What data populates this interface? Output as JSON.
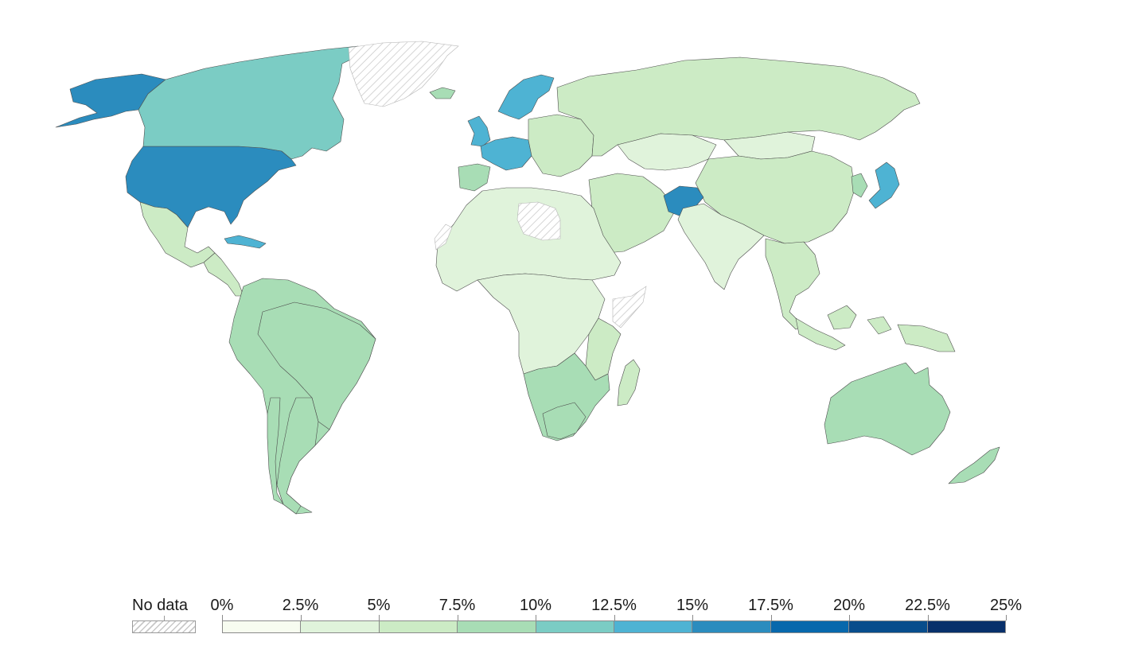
{
  "legend": {
    "no_data_label": "No data",
    "ticks": [
      "0%",
      "2.5%",
      "5%",
      "7.5%",
      "10%",
      "12.5%",
      "15%",
      "17.5%",
      "20%",
      "22.5%",
      "25%"
    ],
    "bins": [
      {
        "range": "0%–2.5%",
        "color": "#f7fcf0"
      },
      {
        "range": "2.5%–5%",
        "color": "#e0f3db"
      },
      {
        "range": "5%–7.5%",
        "color": "#ccebc5"
      },
      {
        "range": "7.5%–10%",
        "color": "#a8ddb5"
      },
      {
        "range": "10%–12.5%",
        "color": "#7bccc4"
      },
      {
        "range": "12.5%–15%",
        "color": "#4eb3d3"
      },
      {
        "range": "15%–17.5%",
        "color": "#2b8cbe"
      },
      {
        "range": "17.5%–20%",
        "color": "#0868ac"
      },
      {
        "range": "20%–22.5%",
        "color": "#084d8c"
      },
      {
        "range": "22.5%–25%",
        "color": "#08306b"
      }
    ],
    "no_data_color": "#c8c8c8"
  },
  "regions": [
    {
      "name": "United States",
      "bin": 6
    },
    {
      "name": "Alaska",
      "bin": 6
    },
    {
      "name": "Canada",
      "bin": 4
    },
    {
      "name": "Mexico",
      "bin": 2
    },
    {
      "name": "Central America",
      "bin": 2
    },
    {
      "name": "Cuba",
      "bin": 5
    },
    {
      "name": "Greenland",
      "bin": null
    },
    {
      "name": "South America",
      "bin": 3
    },
    {
      "name": "Brazil",
      "bin": 3
    },
    {
      "name": "Argentina",
      "bin": 3
    },
    {
      "name": "Chile",
      "bin": 3
    },
    {
      "name": "Iceland",
      "bin": 3
    },
    {
      "name": "United Kingdom",
      "bin": 5
    },
    {
      "name": "Scandinavia",
      "bin": 5
    },
    {
      "name": "Western Europe",
      "bin": 5
    },
    {
      "name": "Iberia",
      "bin": 3
    },
    {
      "name": "Eastern Europe",
      "bin": 2
    },
    {
      "name": "Russia",
      "bin": 2
    },
    {
      "name": "Kazakhstan",
      "bin": 1
    },
    {
      "name": "Mongolia",
      "bin": 1
    },
    {
      "name": "China",
      "bin": 2
    },
    {
      "name": "Japan",
      "bin": 5
    },
    {
      "name": "Korea",
      "bin": 3
    },
    {
      "name": "Middle East",
      "bin": 2
    },
    {
      "name": "Afghanistan",
      "bin": 6
    },
    {
      "name": "India",
      "bin": 1
    },
    {
      "name": "Southeast Asia",
      "bin": 2
    },
    {
      "name": "Indonesia",
      "bin": 2
    },
    {
      "name": "Australia",
      "bin": 3
    },
    {
      "name": "New Zealand",
      "bin": 3
    },
    {
      "name": "North Africa",
      "bin": 1
    },
    {
      "name": "Libya",
      "bin": null
    },
    {
      "name": "Western Sahara",
      "bin": null
    },
    {
      "name": "Somalia",
      "bin": null
    },
    {
      "name": "Central Africa",
      "bin": 1
    },
    {
      "name": "East Africa",
      "bin": 2
    },
    {
      "name": "Southern Africa",
      "bin": 3
    },
    {
      "name": "South Africa",
      "bin": 3
    },
    {
      "name": "Madagascar",
      "bin": 2
    }
  ]
}
